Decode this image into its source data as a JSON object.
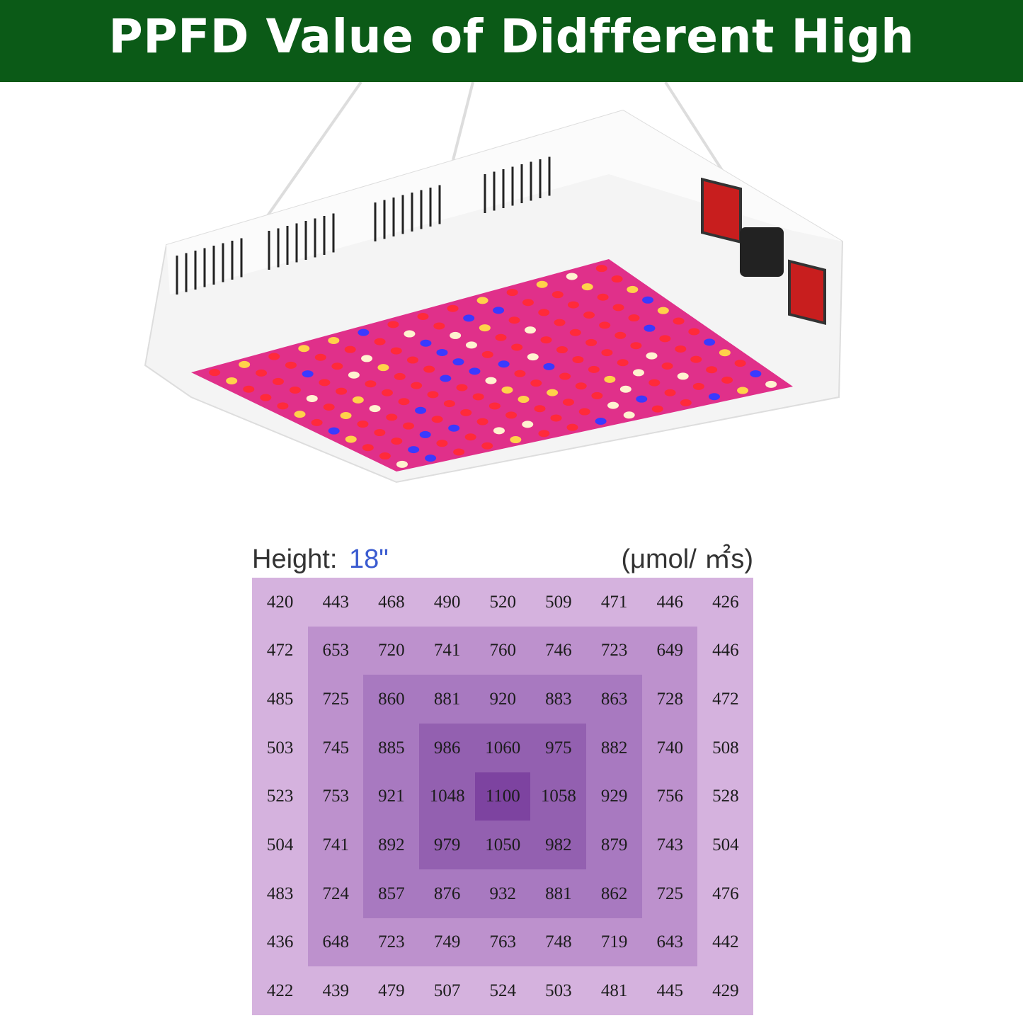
{
  "header": {
    "title": "PPFD Value of Didfferent High"
  },
  "table": {
    "height_label": "Height:",
    "height_value": "18\"",
    "unit": "(μmol/ ㎡s)",
    "rows": [
      [
        420,
        443,
        468,
        490,
        520,
        509,
        471,
        446,
        426
      ],
      [
        472,
        653,
        720,
        741,
        760,
        746,
        723,
        649,
        446
      ],
      [
        485,
        725,
        860,
        881,
        920,
        883,
        863,
        728,
        472
      ],
      [
        503,
        745,
        885,
        986,
        1060,
        975,
        882,
        740,
        508
      ],
      [
        523,
        753,
        921,
        1048,
        1100,
        1058,
        929,
        756,
        528
      ],
      [
        504,
        741,
        892,
        979,
        1050,
        982,
        879,
        743,
        504
      ],
      [
        483,
        724,
        857,
        876,
        932,
        881,
        862,
        725,
        476
      ],
      [
        436,
        648,
        723,
        749,
        763,
        748,
        719,
        643,
        442
      ],
      [
        422,
        439,
        479,
        507,
        524,
        503,
        481,
        445,
        429
      ]
    ]
  }
}
